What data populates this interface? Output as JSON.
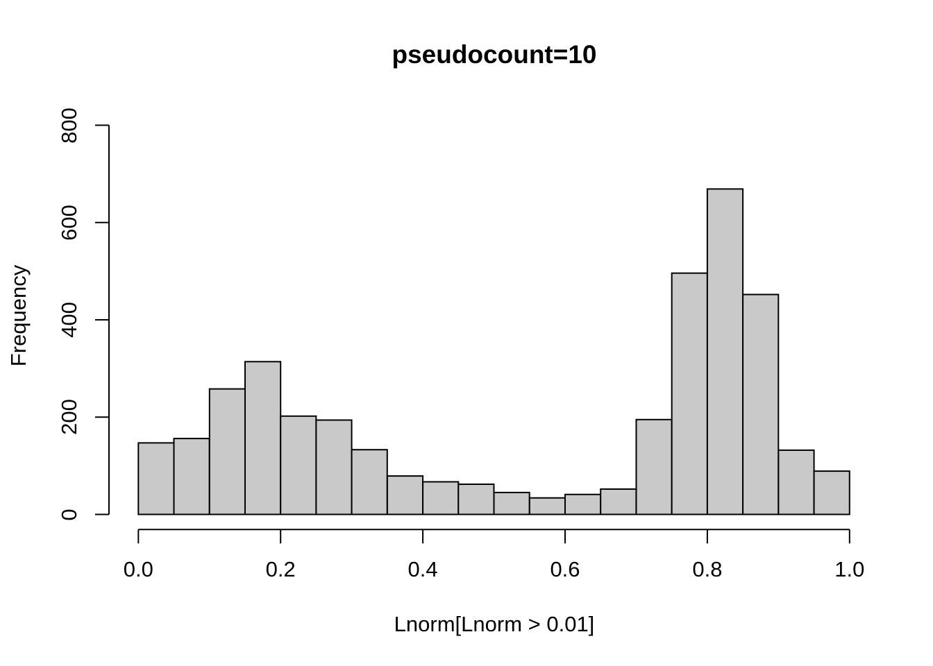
{
  "chart_data": {
    "type": "bar",
    "subtype": "histogram",
    "title": "pseudocount=10",
    "xlabel": "Lnorm[Lnorm > 0.01]",
    "ylabel": "Frequency",
    "xlim": [
      0.0,
      1.0
    ],
    "ylim": [
      0,
      800
    ],
    "bin_width": 0.05,
    "bin_edges": [
      0.0,
      0.05,
      0.1,
      0.15,
      0.2,
      0.25,
      0.3,
      0.35,
      0.4,
      0.45,
      0.5,
      0.55,
      0.6,
      0.65,
      0.7,
      0.75,
      0.8,
      0.85,
      0.9,
      0.95,
      1.0
    ],
    "values": [
      147,
      156,
      258,
      314,
      202,
      194,
      133,
      79,
      67,
      62,
      45,
      34,
      41,
      52,
      195,
      496,
      669,
      452,
      132,
      89
    ],
    "x_tick_labels": [
      "0.0",
      "0.2",
      "0.4",
      "0.6",
      "0.8",
      "1.0"
    ],
    "y_tick_labels": [
      "0",
      "200",
      "400",
      "600",
      "800"
    ],
    "grid": "off",
    "legend": "none",
    "bar_fill_color": "#c9c9c9",
    "bar_border_color": "#000000",
    "axis_color": "#000000",
    "background_color": "#ffffff"
  }
}
